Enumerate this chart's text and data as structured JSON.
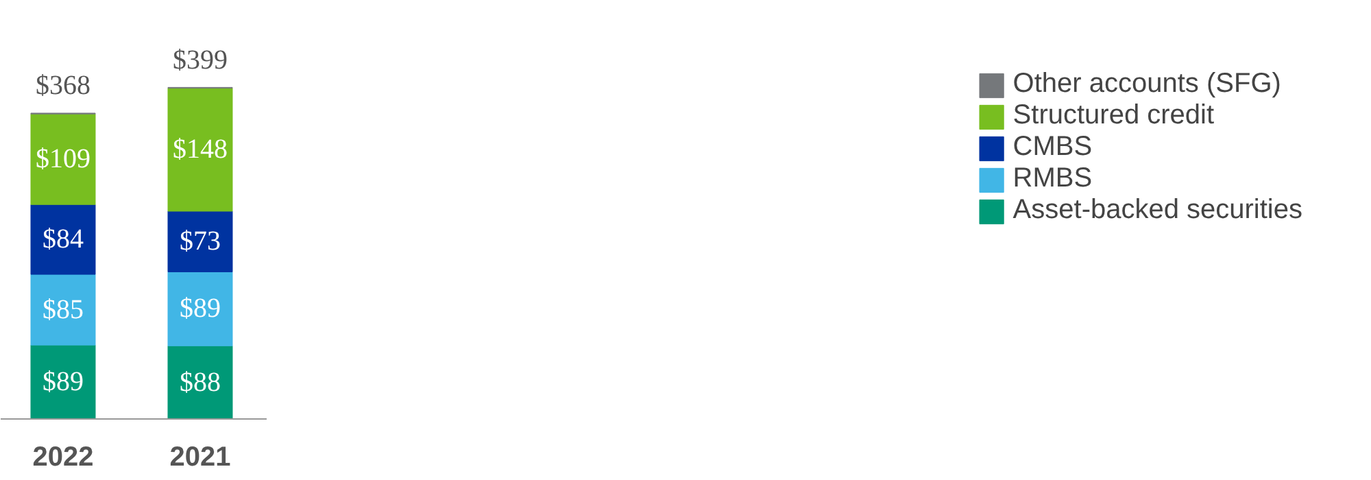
{
  "chart_data": {
    "type": "bar",
    "stacked": true,
    "categories": [
      "2022",
      "2021"
    ],
    "series": [
      {
        "name": "Asset-backed securities",
        "color": "#009977",
        "values": [
          89,
          88
        ],
        "value_labels": [
          "$89",
          "$88"
        ]
      },
      {
        "name": "RMBS",
        "color": "#41b6e6",
        "values": [
          85,
          89
        ],
        "value_labels": [
          "$85",
          "$89"
        ]
      },
      {
        "name": "CMBS",
        "color": "#0033a0",
        "values": [
          84,
          73
        ],
        "value_labels": [
          "$84",
          "$73"
        ]
      },
      {
        "name": "Structured credit",
        "color": "#78be20",
        "values": [
          109,
          148
        ],
        "value_labels": [
          "$109",
          "$148"
        ]
      },
      {
        "name": "Other accounts (SFG)",
        "color": "#75787b",
        "values": [
          1,
          1
        ],
        "value_labels": [
          null,
          null
        ]
      }
    ],
    "totals": [
      "$368",
      "$399"
    ],
    "legend": "right",
    "grid": false
  }
}
